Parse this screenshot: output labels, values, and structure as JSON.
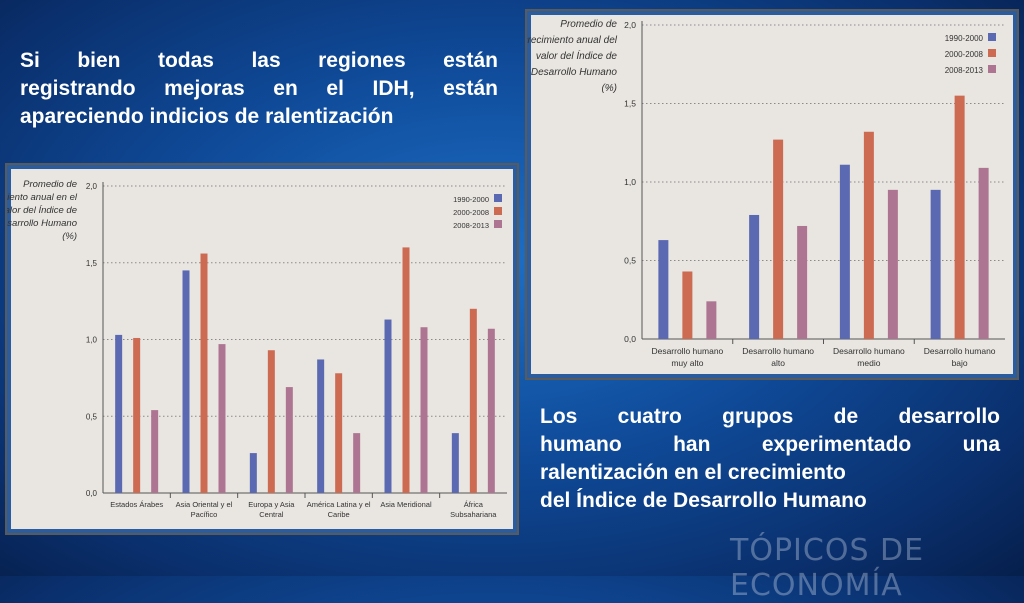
{
  "slide": {
    "text_top": [
      "Si bien todas las regiones están",
      "registrando mejoras en el IDH, están",
      "apareciendo indicios de ralentización"
    ],
    "text_bottom": [
      "Los cuatro grupos de desarrollo",
      "humano han experimentado una",
      "ralentización en el crecimiento",
      "del Índice de Desarrollo Humano"
    ],
    "footer_logo": "TÓPICOS DE ECONOMÍA"
  },
  "colors": {
    "series": [
      "#5b69b3",
      "#cd6a52",
      "#ad7592"
    ],
    "grid": "#8a8a8a",
    "axis": "#555555"
  },
  "chart_data": [
    {
      "type": "bar",
      "ylabel": [
        "Promedio de",
        "crecimiento anual en el",
        "valor del Índice de",
        "Desarrollo Humano",
        "(%)"
      ],
      "yticks": [
        "0,0",
        "0,5",
        "1,0",
        "1,5",
        "2,0"
      ],
      "ylim": [
        0,
        2.0
      ],
      "grid": true,
      "legend_position": "top-right",
      "categories": [
        [
          "Estados Árabes"
        ],
        [
          "Asia Oriental y el",
          "Pacífico"
        ],
        [
          "Europa y Asia",
          "Central"
        ],
        [
          "América Latina y el",
          "Caribe"
        ],
        [
          "Asia Meridional"
        ],
        [
          "África",
          "Subsahariana"
        ]
      ],
      "series": [
        {
          "name": "1990-2000",
          "values": [
            1.03,
            1.45,
            0.26,
            0.87,
            1.13,
            0.39
          ]
        },
        {
          "name": "2000-2008",
          "values": [
            1.01,
            1.56,
            0.93,
            0.78,
            1.6,
            1.2
          ]
        },
        {
          "name": "2008-2013",
          "values": [
            0.54,
            0.97,
            0.69,
            0.39,
            1.08,
            1.07
          ]
        }
      ]
    },
    {
      "type": "bar",
      "ylabel": [
        "Promedio de",
        "crecimiento anual del",
        "valor del Índice de",
        "Desarrollo Humano",
        "(%)"
      ],
      "yticks": [
        "0,0",
        "0,5",
        "1,0",
        "1,5",
        "2,0"
      ],
      "ylim": [
        0,
        2.0
      ],
      "grid": true,
      "legend_position": "top-right",
      "categories": [
        [
          "Desarrollo humano",
          "muy alto"
        ],
        [
          "Desarrollo humano",
          "alto"
        ],
        [
          "Desarrollo humano",
          "medio"
        ],
        [
          "Desarrollo humano",
          "bajo"
        ]
      ],
      "series": [
        {
          "name": "1990-2000",
          "values": [
            0.63,
            0.79,
            1.11,
            0.95
          ]
        },
        {
          "name": "2000-2008",
          "values": [
            0.43,
            1.27,
            1.32,
            1.55
          ]
        },
        {
          "name": "2008-2013",
          "values": [
            0.24,
            0.72,
            0.95,
            1.09
          ]
        }
      ]
    }
  ]
}
